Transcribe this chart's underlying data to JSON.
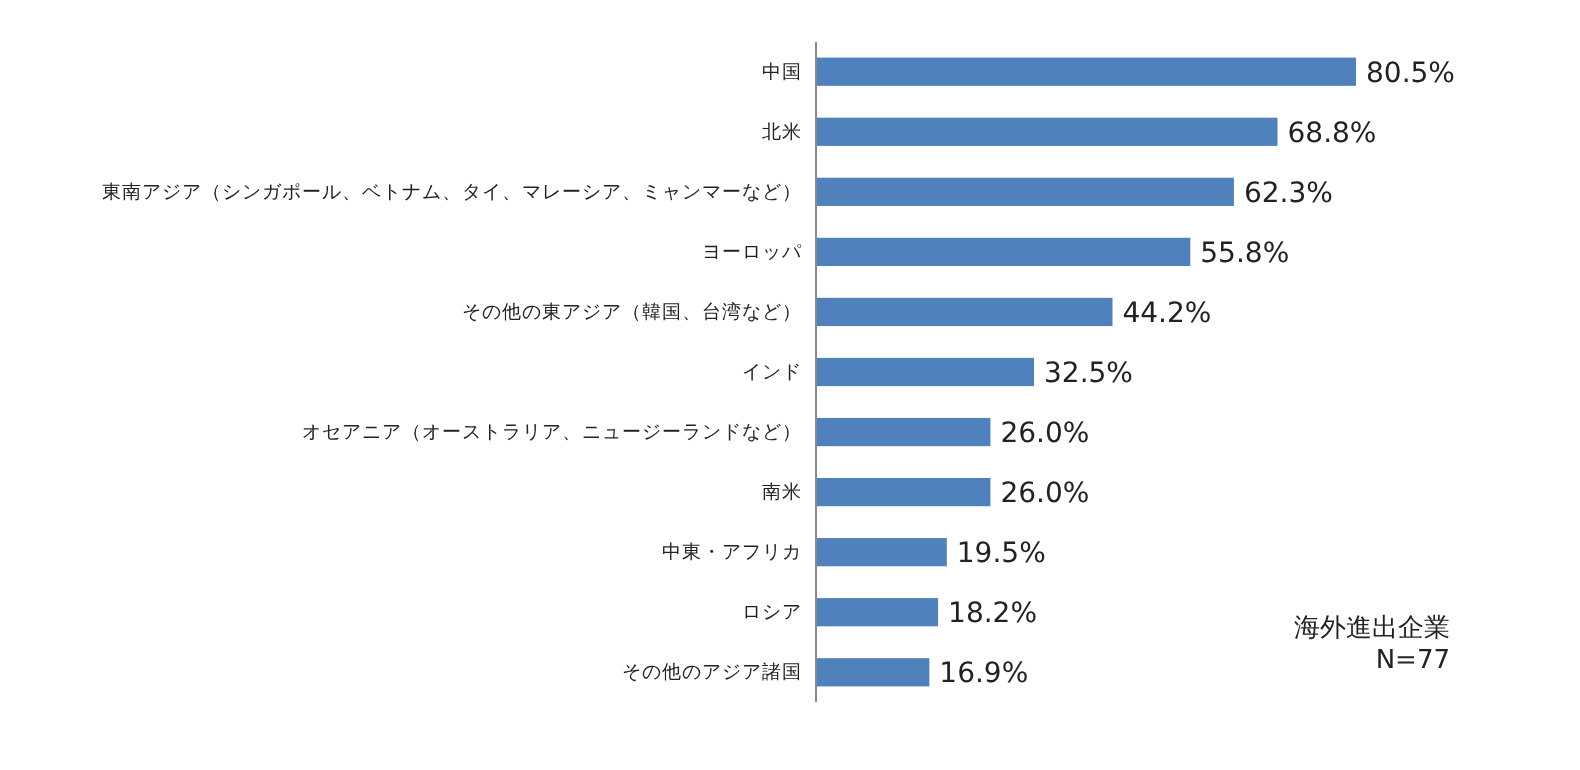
{
  "chart_data": {
    "type": "bar",
    "orientation": "horizontal",
    "categories": [
      "中国",
      "北米",
      "東南アジア（シンガポール、ベトナム、タイ、マレーシア、ミャンマーなど）",
      "ヨーロッパ",
      "その他の東アジア（韓国、台湾など）",
      "インド",
      "オセアニア（オーストラリア、ニュージーランドなど）",
      "南米",
      "中東・アフリカ",
      "ロシア",
      "その他のアジア諸国"
    ],
    "values": [
      80.5,
      68.8,
      62.3,
      55.8,
      44.2,
      32.5,
      26.0,
      26.0,
      19.5,
      18.2,
      16.9
    ],
    "value_labels": [
      "80.5%",
      "68.8%",
      "62.3%",
      "55.8%",
      "44.2%",
      "32.5%",
      "26.0%",
      "26.0%",
      "19.5%",
      "18.2%",
      "16.9%"
    ],
    "color": "#4f81bd",
    "annotations": [
      "海外進出企業",
      "N=77"
    ]
  }
}
